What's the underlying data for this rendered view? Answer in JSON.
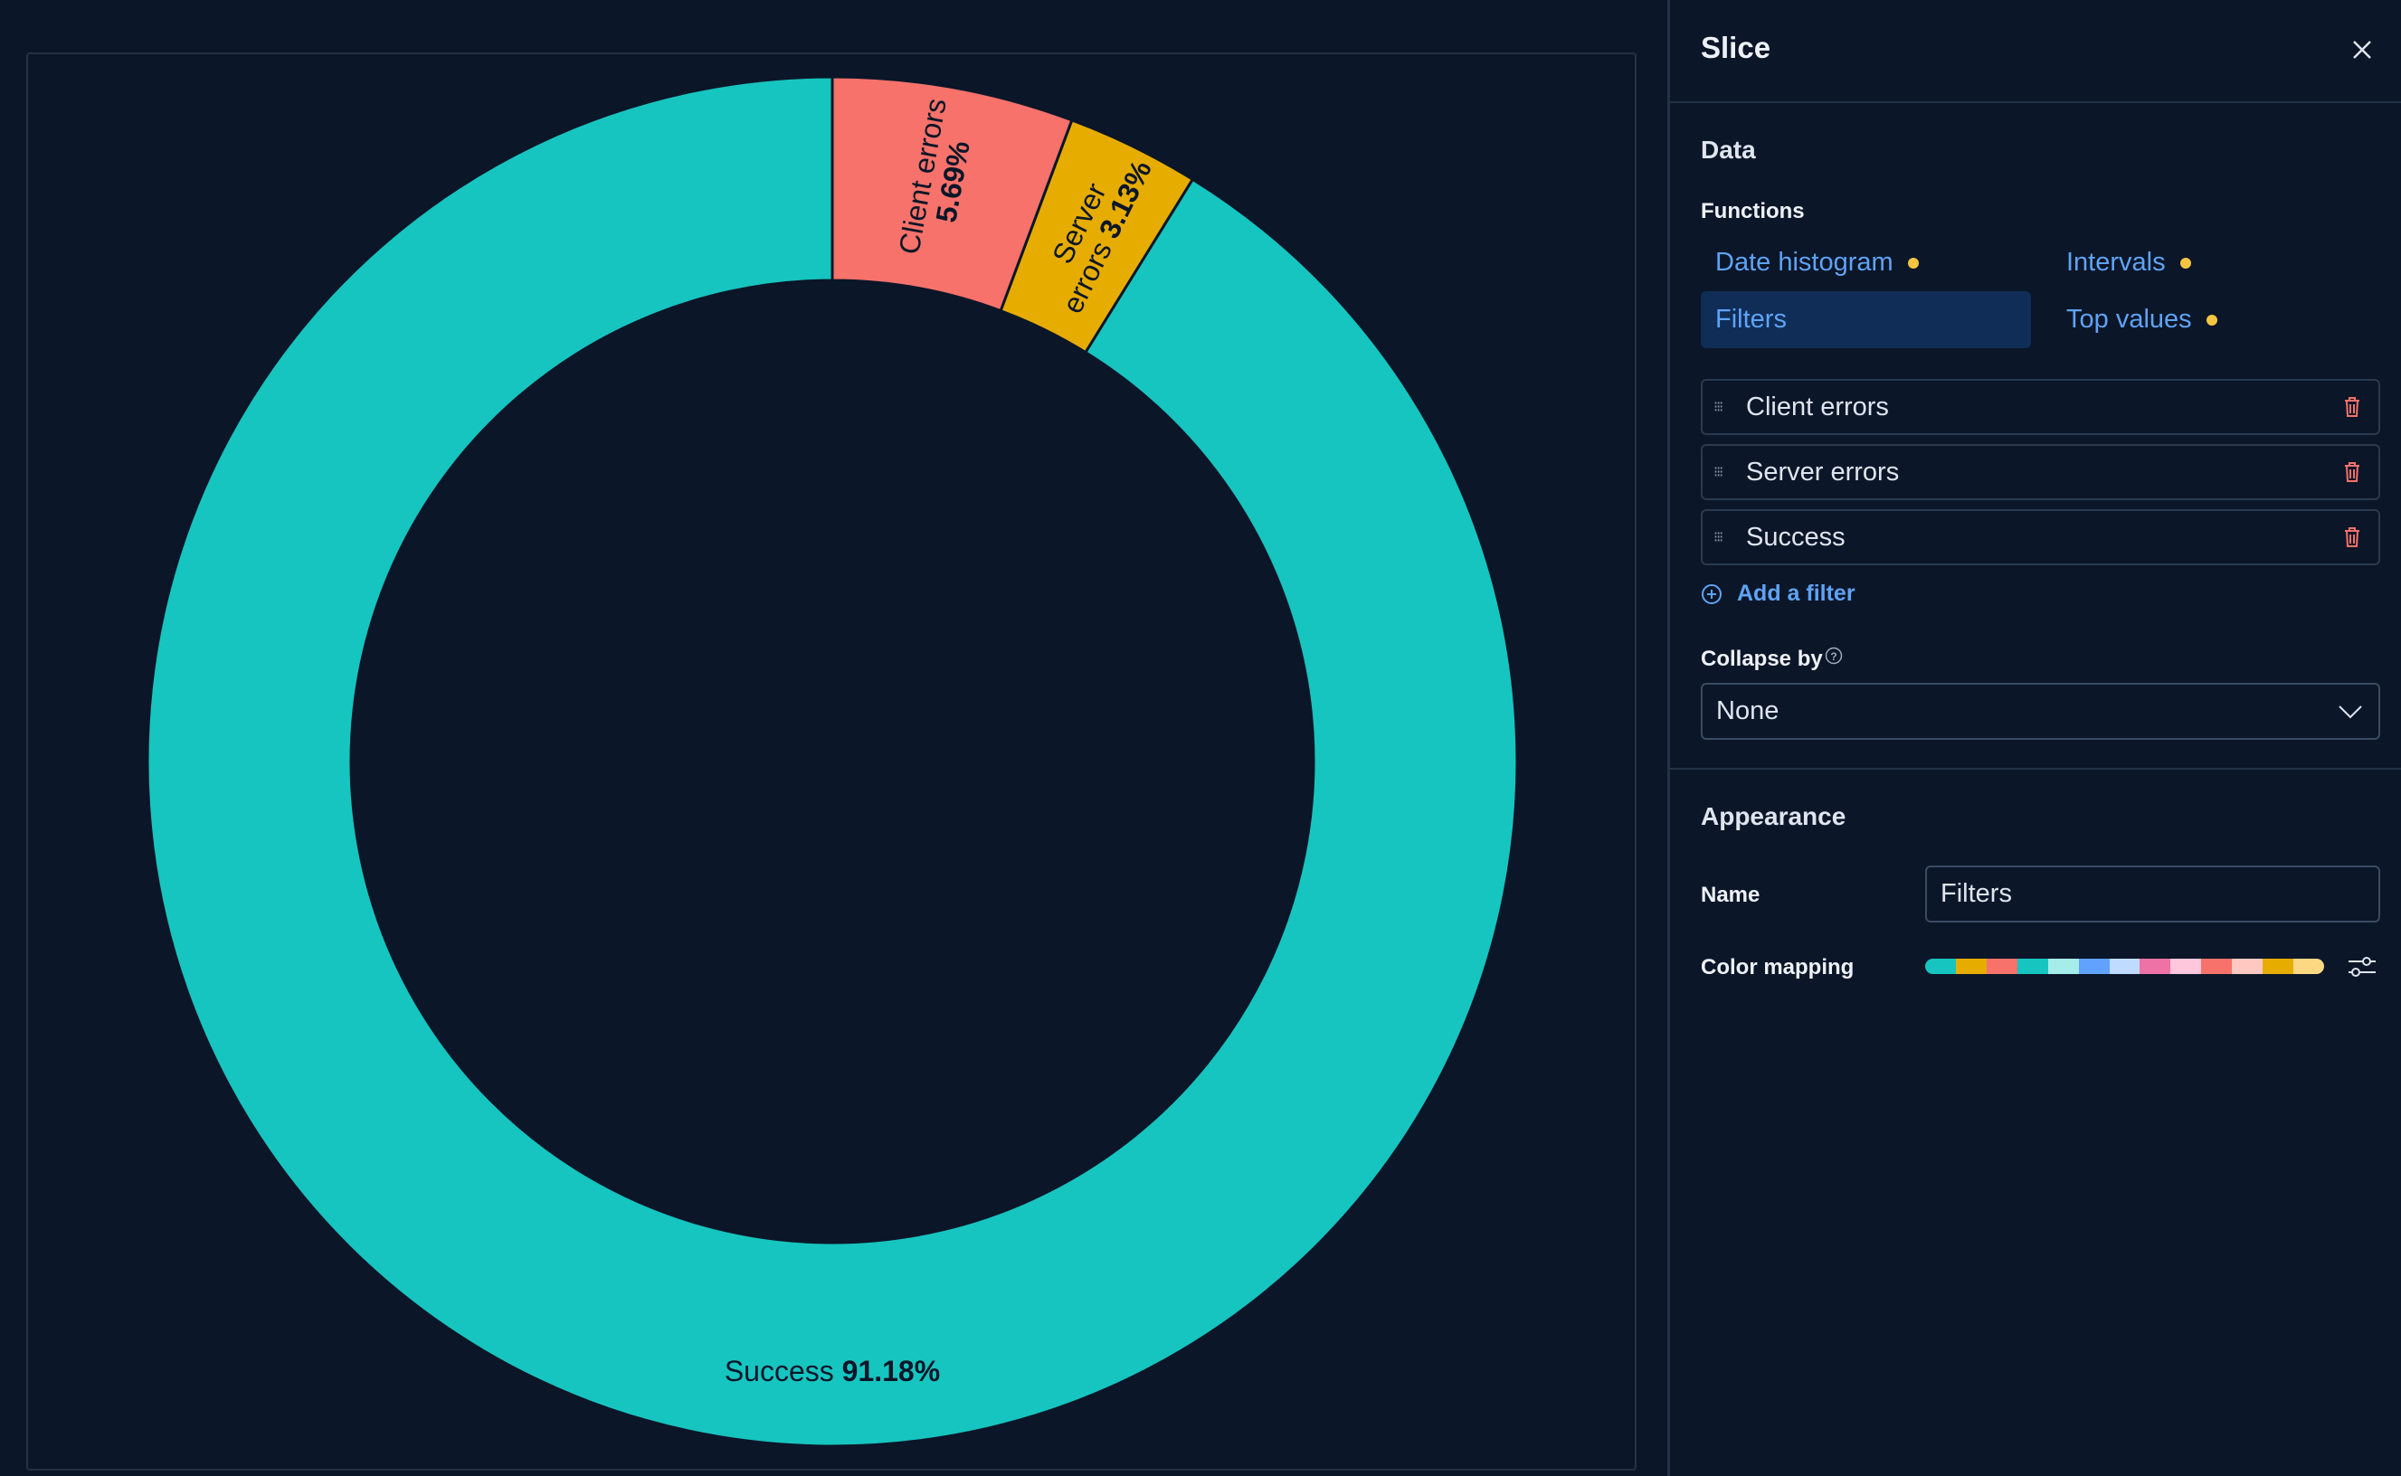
{
  "chart_data": {
    "type": "pie",
    "donut": true,
    "slices": [
      {
        "name": "Client errors",
        "value": 5.69,
        "label": "5.69%",
        "color": "#f6726a"
      },
      {
        "name": "Server errors",
        "value": 3.13,
        "label": "3.13%",
        "color": "#e7ac00"
      },
      {
        "name": "Success",
        "value": 91.18,
        "label": "91.18%",
        "color": "#16c5c0"
      }
    ]
  },
  "panel": {
    "title": "Slice",
    "data_heading": "Data",
    "functions_label": "Functions",
    "functions": [
      {
        "label": "Date histogram",
        "dot": true,
        "active": false
      },
      {
        "label": "Intervals",
        "dot": true,
        "active": false
      },
      {
        "label": "Filters",
        "dot": false,
        "active": true
      },
      {
        "label": "Top values",
        "dot": true,
        "active": false
      }
    ],
    "filters": [
      "Client errors",
      "Server errors",
      "Success"
    ],
    "add_filter": "Add a filter",
    "collapse_label": "Collapse by",
    "collapse_value": "None",
    "appearance_heading": "Appearance",
    "name_label": "Name",
    "name_value": "Filters",
    "color_mapping_label": "Color mapping",
    "palette": [
      "#16c5c0",
      "#e7ac00",
      "#f6726a",
      "#16c5c0",
      "#a6edea",
      "#61a2ff",
      "#bfdbff",
      "#ee72a6",
      "#ffc7db",
      "#f6726a",
      "#ffc9c2",
      "#e7ac00",
      "#fcd883"
    ]
  }
}
